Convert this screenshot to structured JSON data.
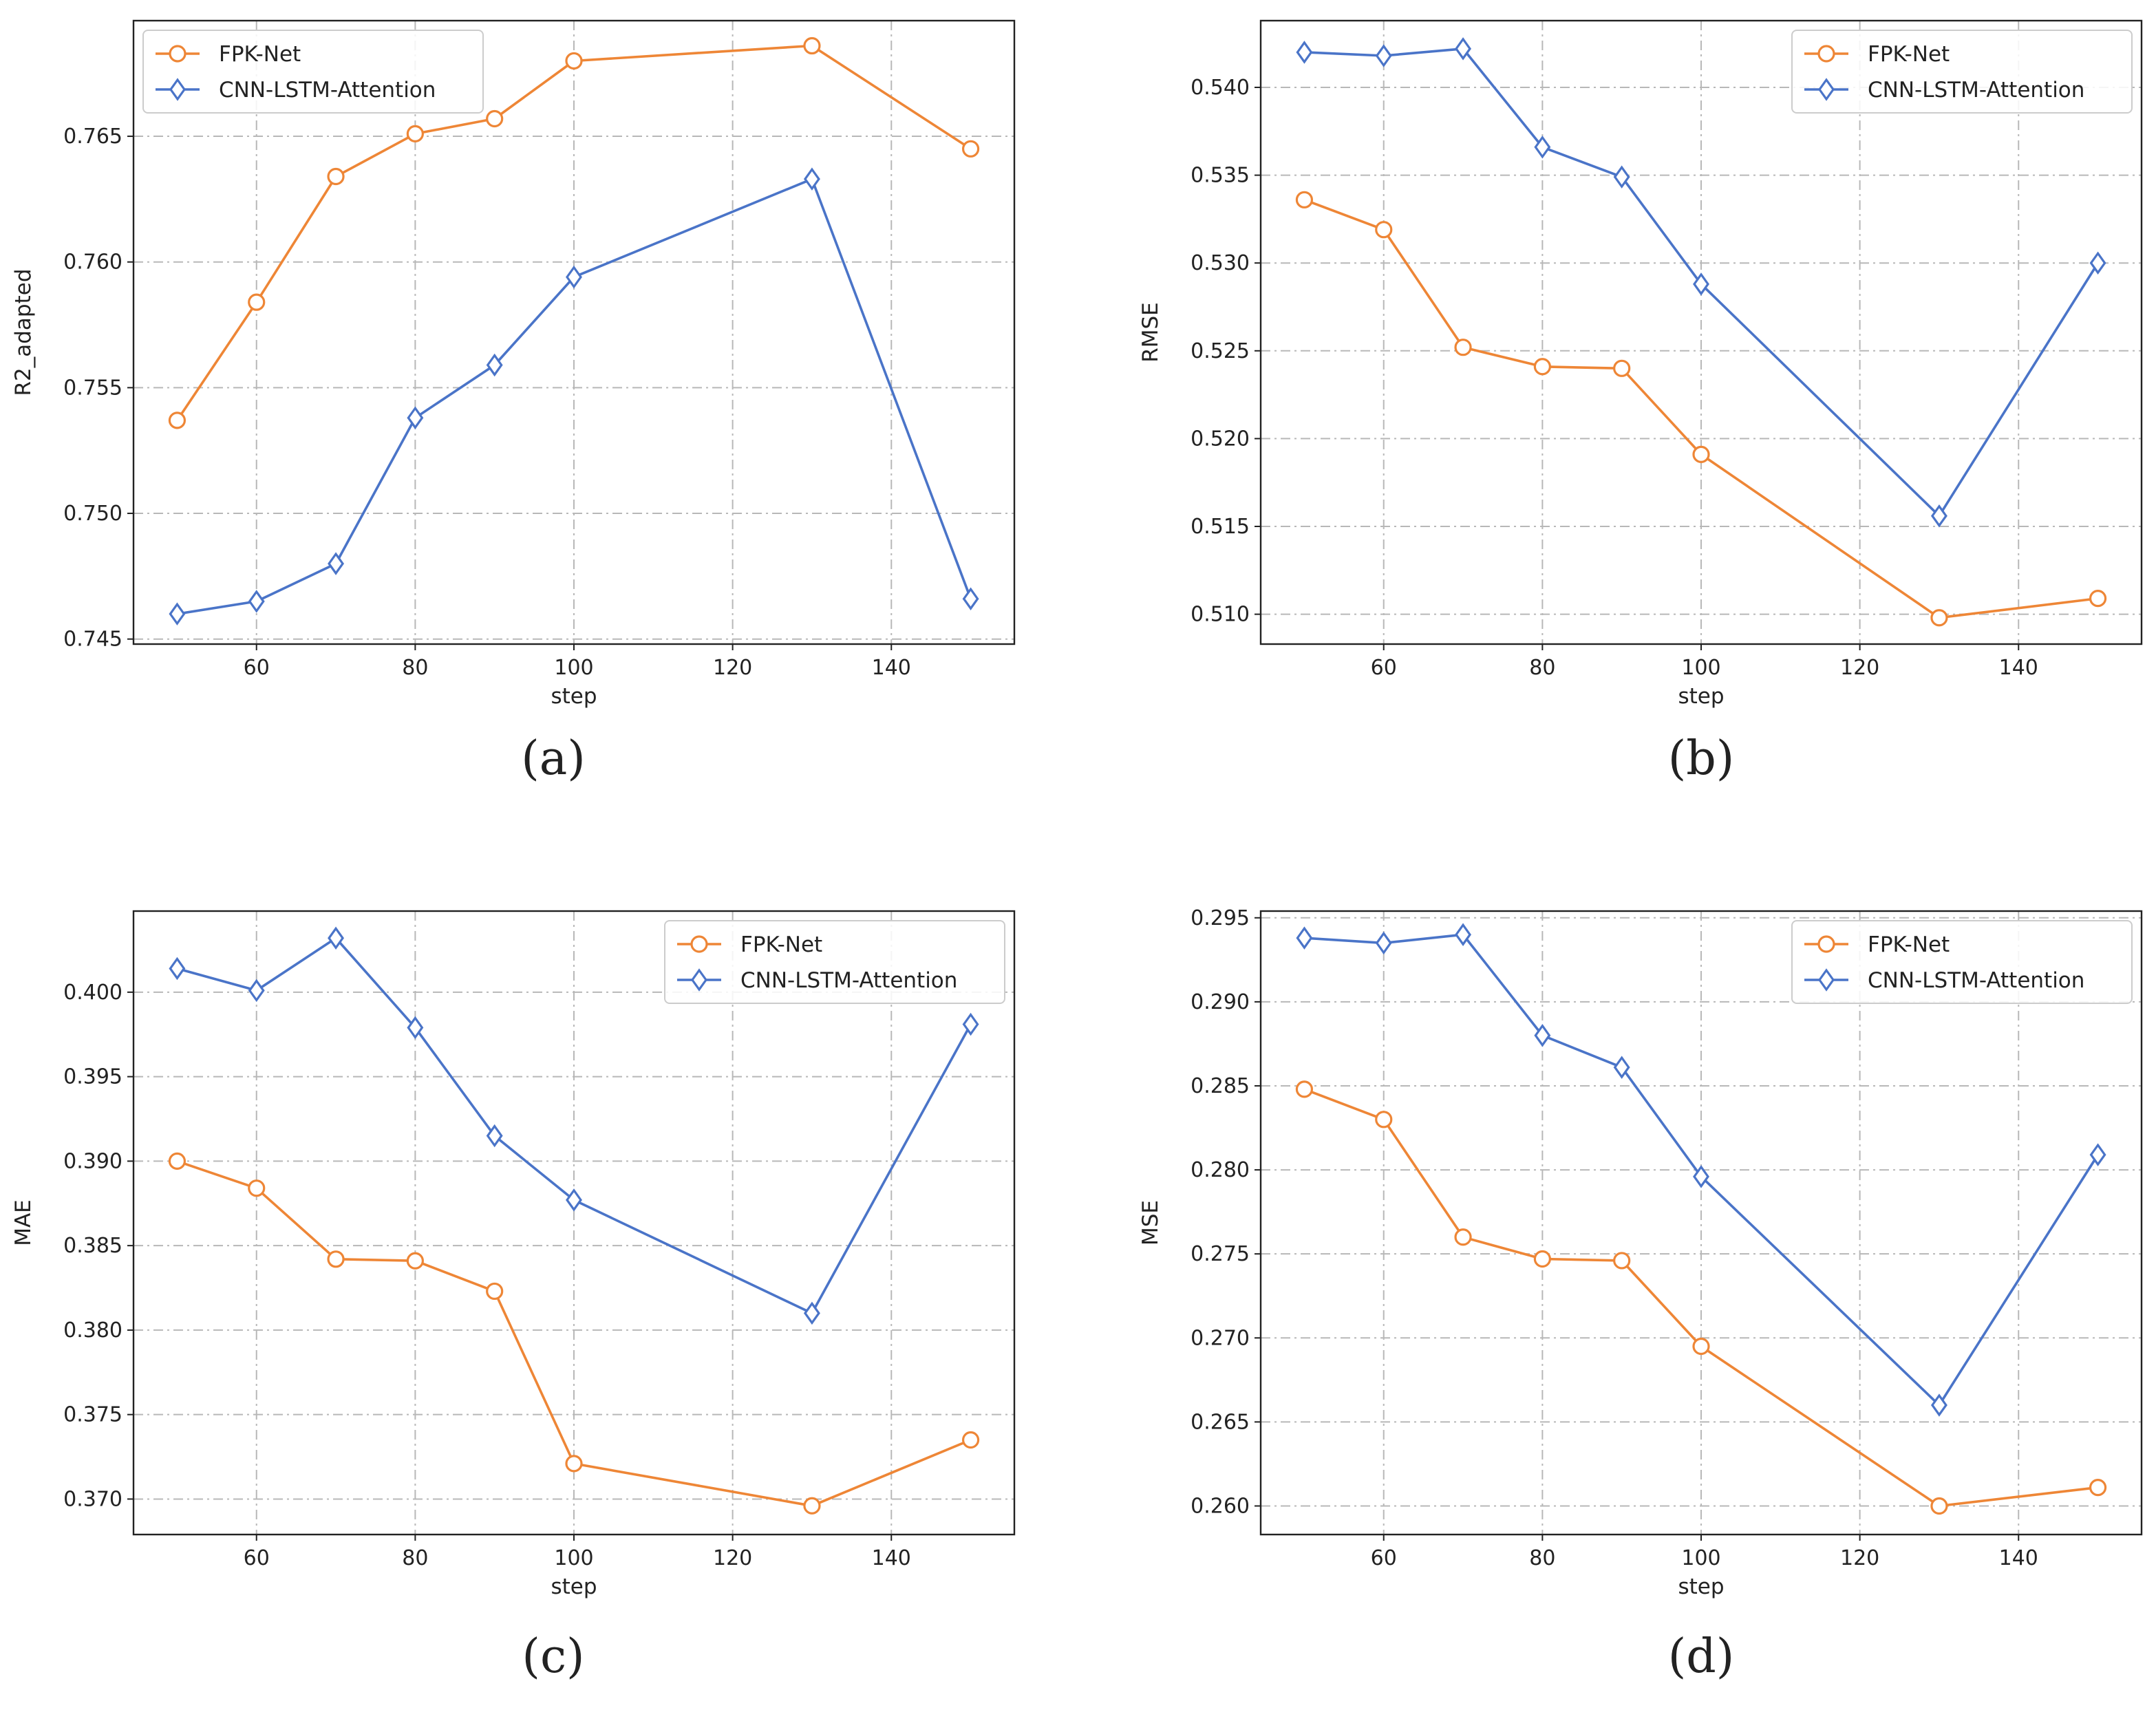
{
  "colors": {
    "fpk": "#ee8636",
    "cnn": "#4a74c8",
    "grid": "#b8b8b8",
    "axis": "#222222"
  },
  "chart_data": [
    {
      "type": "line",
      "caption": "(a)",
      "xlabel": "step",
      "ylabel": "R2_adapted",
      "x": [
        50,
        60,
        70,
        80,
        90,
        100,
        130,
        150
      ],
      "xlim": [
        44.5,
        155.5
      ],
      "ylim": [
        0.7448,
        0.7696
      ],
      "xticks": [
        60,
        80,
        100,
        120,
        140
      ],
      "yticks": [
        0.745,
        0.75,
        0.755,
        0.76,
        0.765
      ],
      "legend_position": "upper-left",
      "grid": true,
      "series": [
        {
          "name": "FPK-Net",
          "marker": "circle",
          "values": [
            0.7537,
            0.7584,
            0.7634,
            0.7651,
            0.7657,
            0.768,
            0.7686,
            0.7645
          ]
        },
        {
          "name": "CNN-LSTM-Attention",
          "marker": "diamond",
          "values": [
            0.746,
            0.7465,
            0.748,
            0.7538,
            0.7559,
            0.7594,
            0.7633,
            0.7466
          ]
        }
      ]
    },
    {
      "type": "line",
      "caption": "(b)",
      "xlabel": "step",
      "ylabel": "RMSE",
      "x": [
        50,
        60,
        70,
        80,
        90,
        100,
        130,
        150
      ],
      "xlim": [
        44.5,
        155.5
      ],
      "ylim": [
        0.5083,
        0.5438
      ],
      "xticks": [
        60,
        80,
        100,
        120,
        140
      ],
      "yticks": [
        0.51,
        0.515,
        0.52,
        0.525,
        0.53,
        0.535,
        0.54
      ],
      "legend_position": "upper-right",
      "grid": true,
      "series": [
        {
          "name": "FPK-Net",
          "marker": "circle",
          "values": [
            0.5336,
            0.5319,
            0.5252,
            0.5241,
            0.524,
            0.5191,
            0.5098,
            0.5109
          ]
        },
        {
          "name": "CNN-LSTM-Attention",
          "marker": "diamond",
          "values": [
            0.542,
            0.5418,
            0.5422,
            0.5366,
            0.5349,
            0.5288,
            0.5156,
            0.53
          ]
        }
      ]
    },
    {
      "type": "line",
      "caption": "(c)",
      "xlabel": "step",
      "ylabel": "MAE",
      "x": [
        50,
        60,
        70,
        80,
        90,
        100,
        130,
        150
      ],
      "xlim": [
        44.5,
        155.5
      ],
      "ylim": [
        0.3679,
        0.4048
      ],
      "xticks": [
        60,
        80,
        100,
        120,
        140
      ],
      "yticks": [
        0.37,
        0.375,
        0.38,
        0.385,
        0.39,
        0.395,
        0.4
      ],
      "legend_position": "upper-right",
      "grid": true,
      "series": [
        {
          "name": "FPK-Net",
          "marker": "circle",
          "values": [
            0.39,
            0.3884,
            0.3842,
            0.3841,
            0.3823,
            0.3721,
            0.3696,
            0.3735
          ]
        },
        {
          "name": "CNN-LSTM-Attention",
          "marker": "diamond",
          "values": [
            0.4014,
            0.4001,
            0.4032,
            0.3979,
            0.3915,
            0.3877,
            0.381,
            0.3981
          ]
        }
      ]
    },
    {
      "type": "line",
      "caption": "(d)",
      "xlabel": "step",
      "ylabel": "MSE",
      "x": [
        50,
        60,
        70,
        80,
        90,
        100,
        130,
        150
      ],
      "xlim": [
        44.5,
        155.5
      ],
      "ylim": [
        0.2583,
        0.2954
      ],
      "xticks": [
        60,
        80,
        100,
        120,
        140
      ],
      "yticks": [
        0.26,
        0.265,
        0.27,
        0.275,
        0.28,
        0.285,
        0.29,
        0.295
      ],
      "legend_position": "upper-right",
      "grid": true,
      "series": [
        {
          "name": "FPK-Net",
          "marker": "circle",
          "values": [
            0.2848,
            0.283,
            0.276,
            0.2747,
            0.2746,
            0.2695,
            0.26,
            0.2611
          ]
        },
        {
          "name": "CNN-LSTM-Attention",
          "marker": "diamond",
          "values": [
            0.2938,
            0.2935,
            0.294,
            0.288,
            0.2861,
            0.2796,
            0.266,
            0.2809
          ]
        }
      ]
    }
  ]
}
